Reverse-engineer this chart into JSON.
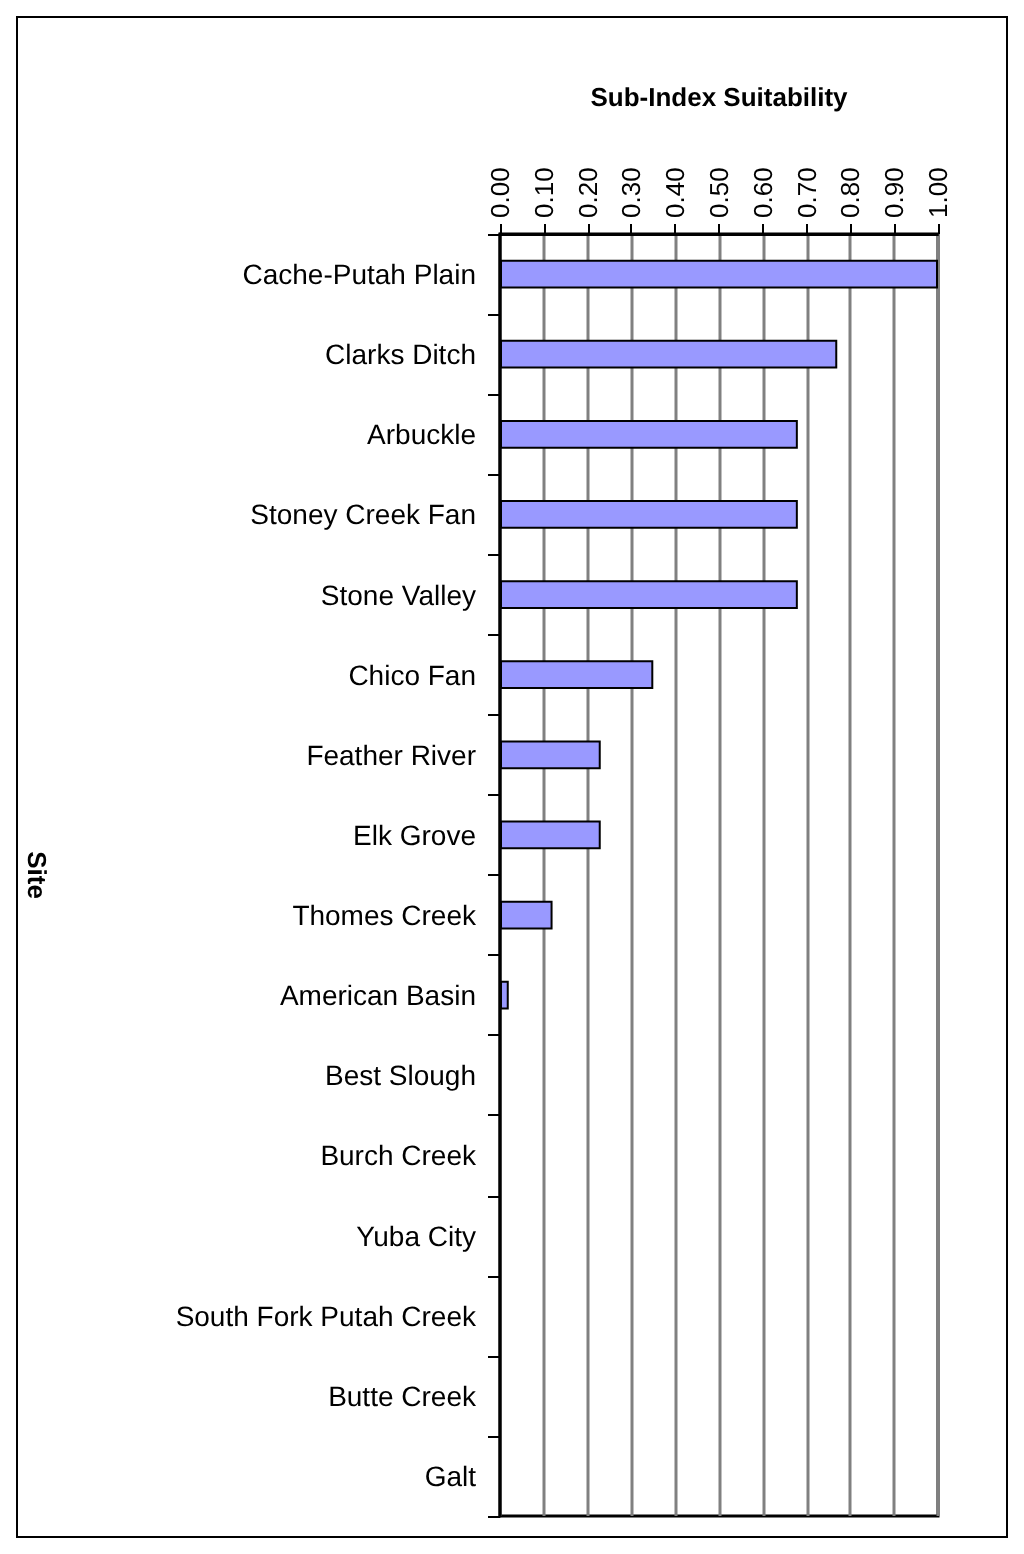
{
  "chart_data": {
    "type": "bar",
    "orientation": "horizontal",
    "xlabel": "Sub-Index Suitability",
    "ylabel": "Site",
    "categories": [
      "Cache-Putah Plain",
      "Clarks Ditch",
      "Arbuckle",
      "Stoney Creek Fan",
      "Stone Valley",
      "Chico Fan",
      "Feather River",
      "Elk Grove",
      "Thomes Creek",
      "American Basin",
      "Best Slough",
      "Burch Creek",
      "Yuba City",
      "South Fork Putah Creek",
      "Butte Creek",
      "Galt"
    ],
    "values": [
      1.0,
      0.77,
      0.68,
      0.68,
      0.68,
      0.35,
      0.23,
      0.23,
      0.12,
      0.02,
      0,
      0,
      0,
      0,
      0,
      0
    ],
    "color": "#9999ff",
    "xlim": [
      0,
      1
    ],
    "xticks": [
      {
        "value": 0,
        "label": "0.00"
      },
      {
        "value": 0.1,
        "label": "0.10"
      },
      {
        "value": 0.2,
        "label": "0.20"
      },
      {
        "value": 0.3,
        "label": "0.30"
      },
      {
        "value": 0.4,
        "label": "0.40"
      },
      {
        "value": 0.5,
        "label": "0.50"
      },
      {
        "value": 0.6,
        "label": "0.60"
      },
      {
        "value": 0.7,
        "label": "0.70"
      },
      {
        "value": 0.8,
        "label": "0.80"
      },
      {
        "value": 0.9,
        "label": "0.90"
      },
      {
        "value": 1,
        "label": "1.00"
      }
    ],
    "grid": "x"
  }
}
